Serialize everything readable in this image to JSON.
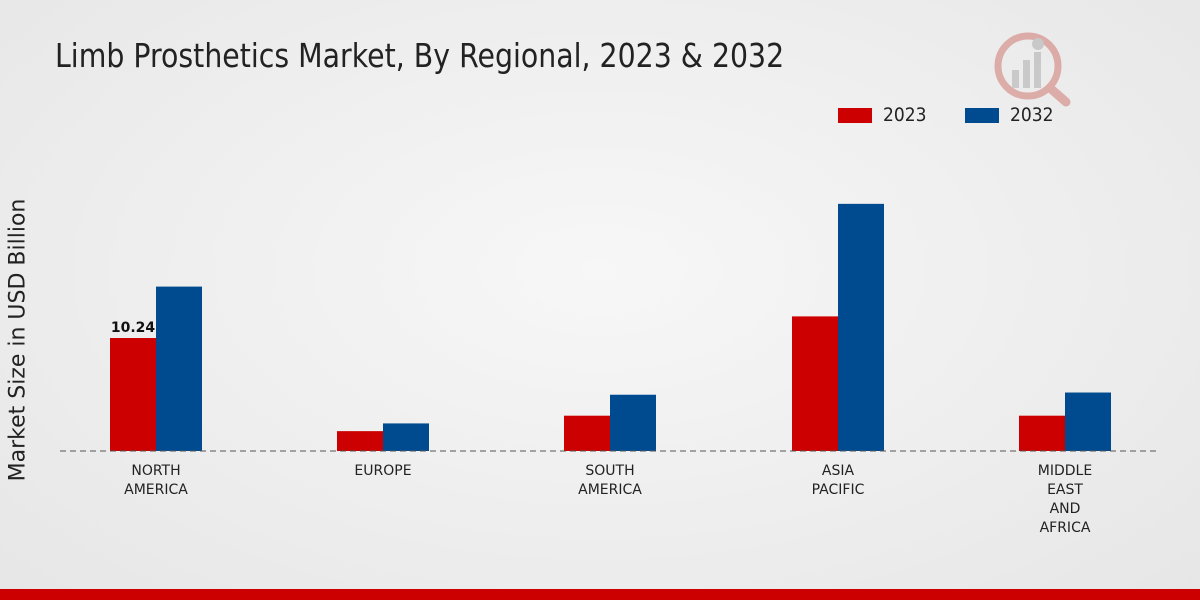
{
  "chart_data": {
    "type": "bar",
    "title": "Limb Prosthetics Market, By Regional, 2023 & 2032",
    "ylabel": "Market Size in USD Billion",
    "xlabel": "",
    "categories": [
      [
        "NORTH",
        "AMERICA"
      ],
      [
        "EUROPE"
      ],
      [
        "SOUTH",
        "AMERICA"
      ],
      [
        "ASIA",
        "PACIFIC"
      ],
      [
        "MIDDLE",
        "EAST",
        "AND",
        "AFRICA"
      ]
    ],
    "series": [
      {
        "name": "2023",
        "color": "#cc0000",
        "values": [
          10.24,
          1.8,
          3.2,
          12.2,
          3.2
        ]
      },
      {
        "name": "2032",
        "color": "#004a8f",
        "values": [
          14.9,
          2.5,
          5.1,
          22.4,
          5.3
        ]
      }
    ],
    "data_labels": [
      {
        "series": 0,
        "index": 0,
        "text": "10.24"
      }
    ],
    "ylim": [
      0,
      30
    ],
    "grid": false,
    "legend_position": "top-right"
  }
}
